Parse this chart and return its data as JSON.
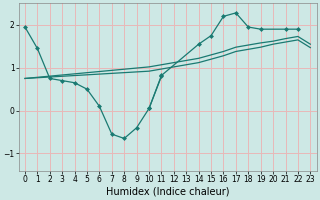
{
  "xlabel": "Humidex (Indice chaleur)",
  "xlim": [
    -0.5,
    23.5
  ],
  "ylim": [
    -1.4,
    2.5
  ],
  "yticks": [
    -1,
    0,
    1,
    2
  ],
  "xticks": [
    0,
    1,
    2,
    3,
    4,
    5,
    6,
    7,
    8,
    9,
    10,
    11,
    12,
    13,
    14,
    15,
    16,
    17,
    18,
    19,
    20,
    21,
    22,
    23
  ],
  "bg_color": "#cde8e5",
  "grid_color": "#e8b8b8",
  "line_color": "#1a7a72",
  "tick_fontsize": 5.5,
  "xlabel_fontsize": 7,
  "line1_x": [
    0,
    1,
    2,
    3,
    4,
    5,
    6,
    7,
    8,
    9,
    10,
    11
  ],
  "line1_y": [
    1.95,
    1.45,
    0.75,
    0.7,
    0.65,
    0.5,
    0.1,
    -0.55,
    -0.65,
    -0.4,
    0.05,
    0.8
  ],
  "line2_x": [
    10,
    11,
    14,
    15,
    16,
    17,
    18,
    19,
    21,
    22
  ],
  "line2_y": [
    0.05,
    0.82,
    1.55,
    1.75,
    2.2,
    2.28,
    1.95,
    1.9,
    1.9,
    1.9
  ],
  "line3_x": [
    0,
    10,
    11,
    12,
    13,
    14,
    15,
    16,
    17,
    18,
    19,
    20,
    21,
    22,
    23
  ],
  "line3_y": [
    0.75,
    1.02,
    1.07,
    1.12,
    1.17,
    1.22,
    1.3,
    1.38,
    1.48,
    1.53,
    1.58,
    1.62,
    1.68,
    1.73,
    1.55
  ],
  "line4_x": [
    0,
    10,
    11,
    12,
    13,
    14,
    15,
    16,
    17,
    18,
    19,
    20,
    21,
    22,
    23
  ],
  "line4_y": [
    0.75,
    0.92,
    0.97,
    1.02,
    1.07,
    1.12,
    1.2,
    1.28,
    1.38,
    1.43,
    1.48,
    1.55,
    1.6,
    1.65,
    1.47
  ]
}
